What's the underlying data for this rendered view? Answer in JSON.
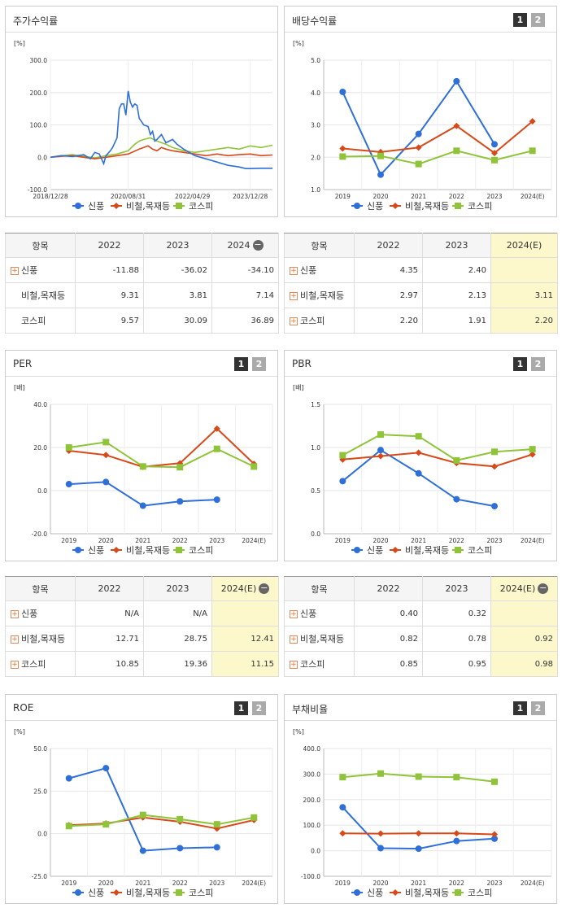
{
  "panels": [
    {
      "title": "주가수익률",
      "buttons": false
    },
    {
      "title": "배당수익률",
      "buttons": true
    },
    {
      "title": "PER",
      "buttons": true
    },
    {
      "title": "PBR",
      "buttons": true
    },
    {
      "title": "ROE",
      "buttons": true
    },
    {
      "title": "부채비율",
      "buttons": true
    }
  ],
  "buttons": {
    "b1": "1",
    "b2": "2"
  },
  "legend": [
    {
      "name": "신풍",
      "color": "#2f6fd8",
      "marker": "circle"
    },
    {
      "name": "비철,목재등",
      "color": "#d8491a",
      "marker": "diamond"
    },
    {
      "name": "코스피",
      "color": "#8fc43a",
      "marker": "square"
    }
  ],
  "chart_data": [
    {
      "type": "line",
      "title": "주가수익률",
      "unit": "[%]",
      "ylim": [
        -100,
        300
      ],
      "yticks": [
        "300.0",
        "200.0",
        "100.0",
        "0.0",
        "-100.0"
      ],
      "xticks": [
        "2018/12/28",
        "2020/08/31",
        "2022/04/29",
        "2023/12/28"
      ],
      "series": [
        {
          "name": "신풍",
          "x": [
            0,
            5,
            10,
            15,
            18,
            20,
            22,
            24,
            25,
            27,
            28,
            30,
            31,
            32,
            33,
            34,
            35,
            36,
            37,
            38,
            39,
            40,
            42,
            44,
            45,
            46,
            47,
            48,
            50,
            52,
            55,
            57,
            60,
            65,
            70,
            75,
            80,
            85,
            88,
            90,
            95,
            100
          ],
          "values": [
            0,
            5,
            2,
            8,
            -5,
            15,
            10,
            -20,
            5,
            20,
            30,
            60,
            150,
            165,
            165,
            130,
            205,
            170,
            155,
            165,
            160,
            120,
            100,
            95,
            70,
            80,
            50,
            55,
            70,
            45,
            55,
            40,
            25,
            5,
            -5,
            -15,
            -25,
            -30,
            -35,
            -35,
            -34,
            -34
          ]
        },
        {
          "name": "비철,목재등",
          "x": [
            0,
            5,
            10,
            15,
            20,
            25,
            30,
            35,
            40,
            42,
            44,
            46,
            48,
            50,
            52,
            55,
            60,
            65,
            70,
            75,
            80,
            85,
            90,
            95,
            100
          ],
          "values": [
            0,
            3,
            5,
            0,
            -5,
            0,
            5,
            10,
            25,
            30,
            35,
            25,
            20,
            30,
            25,
            20,
            15,
            10,
            5,
            10,
            5,
            8,
            10,
            5,
            7
          ]
        },
        {
          "name": "코스피",
          "x": [
            0,
            5,
            10,
            15,
            20,
            25,
            30,
            35,
            38,
            40,
            42,
            45,
            48,
            50,
            52,
            55,
            60,
            65,
            70,
            75,
            80,
            85,
            90,
            95,
            100
          ],
          "values": [
            0,
            5,
            8,
            3,
            -2,
            5,
            10,
            20,
            40,
            50,
            55,
            60,
            50,
            45,
            40,
            30,
            20,
            15,
            20,
            25,
            30,
            25,
            35,
            30,
            37
          ]
        }
      ]
    },
    {
      "type": "line",
      "title": "배당수익률",
      "unit": "[%]",
      "ylim": [
        1.0,
        5.0
      ],
      "yticks": [
        "5.0",
        "4.0",
        "3.0",
        "2.0",
        "1.0"
      ],
      "categories": [
        "2019",
        "2020",
        "2021",
        "2022",
        "2023",
        "2024(E)"
      ],
      "series": [
        {
          "name": "신풍",
          "values": [
            4.02,
            1.46,
            2.72,
            4.35,
            2.4,
            null
          ]
        },
        {
          "name": "비철,목재등",
          "values": [
            2.27,
            2.16,
            2.3,
            2.97,
            2.13,
            3.11
          ]
        },
        {
          "name": "코스피",
          "values": [
            2.02,
            2.04,
            1.79,
            2.2,
            1.91,
            2.2
          ]
        }
      ]
    },
    {
      "type": "line",
      "title": "PER",
      "unit": "[배]",
      "ylim": [
        -20,
        40
      ],
      "yticks": [
        "40.0",
        "20.0",
        "0.0",
        "-20.0"
      ],
      "categories": [
        "2019",
        "2020",
        "2021",
        "2022",
        "2023",
        "2024(E)"
      ],
      "series": [
        {
          "name": "신풍",
          "values": [
            3.0,
            4.0,
            -7.0,
            -5.0,
            -4.2,
            null
          ]
        },
        {
          "name": "비철,목재등",
          "values": [
            18.5,
            16.5,
            11.0,
            12.71,
            28.75,
            12.41
          ]
        },
        {
          "name": "코스피",
          "values": [
            20.0,
            22.5,
            11.2,
            10.85,
            19.36,
            11.15
          ]
        }
      ]
    },
    {
      "type": "line",
      "title": "PBR",
      "unit": "[배]",
      "ylim": [
        0.0,
        1.5
      ],
      "yticks": [
        "1.5",
        "1.0",
        "0.5",
        "0.0"
      ],
      "categories": [
        "2019",
        "2020",
        "2021",
        "2022",
        "2023",
        "2024(E)"
      ],
      "series": [
        {
          "name": "신풍",
          "values": [
            0.61,
            0.97,
            0.7,
            0.4,
            0.32,
            null
          ]
        },
        {
          "name": "비철,목재등",
          "values": [
            0.86,
            0.9,
            0.94,
            0.82,
            0.78,
            0.92
          ]
        },
        {
          "name": "코스피",
          "values": [
            0.91,
            1.15,
            1.13,
            0.85,
            0.95,
            0.98
          ]
        }
      ]
    },
    {
      "type": "line",
      "title": "ROE",
      "unit": "[%]",
      "ylim": [
        -25,
        50
      ],
      "yticks": [
        "50.0",
        "25.0",
        "0.0",
        "-25.0"
      ],
      "categories": [
        "2019",
        "2020",
        "2021",
        "2022",
        "2023",
        "2024(E)"
      ],
      "series": [
        {
          "name": "신풍",
          "values": [
            32.5,
            38.5,
            -10.0,
            -8.5,
            -8.0,
            null
          ]
        },
        {
          "name": "비철,목재등",
          "values": [
            5.0,
            6.0,
            9.5,
            7.0,
            3.0,
            8.0
          ]
        },
        {
          "name": "코스피",
          "values": [
            4.5,
            5.5,
            11.0,
            8.5,
            5.5,
            9.5
          ]
        }
      ]
    },
    {
      "type": "line",
      "title": "부채비율",
      "unit": "[%]",
      "ylim": [
        -100,
        400
      ],
      "yticks": [
        "400.0",
        "300.0",
        "200.0",
        "100.0",
        "0.0",
        "-100.0"
      ],
      "categories": [
        "2019",
        "2020",
        "2021",
        "2022",
        "2023",
        "2024(E)"
      ],
      "series": [
        {
          "name": "신풍",
          "values": [
            170,
            10,
            8,
            38,
            47,
            null
          ]
        },
        {
          "name": "비철,목재등",
          "values": [
            68,
            67,
            68,
            68,
            64,
            null
          ]
        },
        {
          "name": "코스피",
          "values": [
            288,
            302,
            290,
            288,
            270,
            null
          ]
        }
      ]
    }
  ],
  "tables": [
    {
      "headers": [
        "항목",
        "2022",
        "2023",
        "2024"
      ],
      "minus": true,
      "highlight": false,
      "rows": [
        {
          "name": "신풍",
          "plus": true,
          "values": [
            "-11.88",
            "-36.02",
            "-34.10"
          ]
        },
        {
          "name": "비철,목재등",
          "plus": false,
          "values": [
            "9.31",
            "3.81",
            "7.14"
          ]
        },
        {
          "name": "코스피",
          "plus": false,
          "values": [
            "9.57",
            "30.09",
            "36.89"
          ]
        }
      ]
    },
    {
      "headers": [
        "항목",
        "2022",
        "2023",
        "2024(E)"
      ],
      "minus": false,
      "highlight": true,
      "rows": [
        {
          "name": "신풍",
          "plus": true,
          "values": [
            "4.35",
            "2.40",
            ""
          ]
        },
        {
          "name": "비철,목재등",
          "plus": true,
          "values": [
            "2.97",
            "2.13",
            "3.11"
          ]
        },
        {
          "name": "코스피",
          "plus": true,
          "values": [
            "2.20",
            "1.91",
            "2.20"
          ]
        }
      ]
    },
    {
      "headers": [
        "항목",
        "2022",
        "2023",
        "2024(E)"
      ],
      "minus": true,
      "highlight": true,
      "rows": [
        {
          "name": "신풍",
          "plus": true,
          "values": [
            "N/A",
            "N/A",
            ""
          ]
        },
        {
          "name": "비철,목재등",
          "plus": true,
          "values": [
            "12.71",
            "28.75",
            "12.41"
          ]
        },
        {
          "name": "코스피",
          "plus": true,
          "values": [
            "10.85",
            "19.36",
            "11.15"
          ]
        }
      ]
    },
    {
      "headers": [
        "항목",
        "2022",
        "2023",
        "2024(E)"
      ],
      "minus": true,
      "highlight": true,
      "rows": [
        {
          "name": "신풍",
          "plus": true,
          "values": [
            "0.40",
            "0.32",
            ""
          ]
        },
        {
          "name": "비철,목재등",
          "plus": true,
          "values": [
            "0.82",
            "0.78",
            "0.92"
          ]
        },
        {
          "name": "코스피",
          "plus": true,
          "values": [
            "0.85",
            "0.95",
            "0.98"
          ]
        }
      ]
    }
  ]
}
